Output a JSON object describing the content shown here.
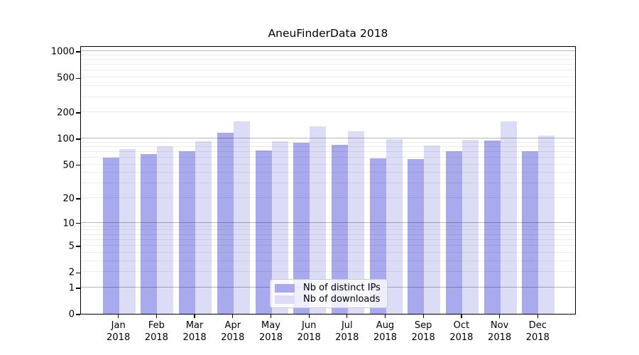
{
  "title": "AneuFinderData 2018",
  "chart_data": {
    "type": "bar",
    "title": "AneuFinderData 2018",
    "categories": [
      "Jan 2018",
      "Feb 2018",
      "Mar 2018",
      "Apr 2018",
      "May 2018",
      "Jun 2018",
      "Jul 2018",
      "Aug 2018",
      "Sep 2018",
      "Oct 2018",
      "Nov 2018",
      "Dec 2018"
    ],
    "x_tick_months": [
      "Jan",
      "Feb",
      "Mar",
      "Apr",
      "May",
      "Jun",
      "Jul",
      "Aug",
      "Sep",
      "Oct",
      "Nov",
      "Dec"
    ],
    "x_tick_year": "2018",
    "series": [
      {
        "name": "Nb of distinct IPs",
        "color": "#a9a9ed",
        "values": [
          60,
          66,
          71,
          117,
          73,
          90,
          84,
          59,
          58,
          71,
          95,
          71
        ]
      },
      {
        "name": "Nb of downloads",
        "color": "#dcdcf7",
        "values": [
          75,
          81,
          93,
          158,
          93,
          137,
          120,
          98,
          83,
          97,
          157,
          107
        ]
      }
    ],
    "xlabel": "",
    "ylabel": "",
    "yscale": "log1p",
    "yticks": [
      0,
      1,
      2,
      5,
      10,
      20,
      50,
      100,
      200,
      500,
      1000
    ],
    "ylim": [
      0,
      1164
    ],
    "grid": true,
    "legend_position": "inside-bottom-center"
  },
  "legend": {
    "entries": [
      {
        "label": "Nb of distinct IPs"
      },
      {
        "label": "Nb of downloads"
      }
    ]
  }
}
